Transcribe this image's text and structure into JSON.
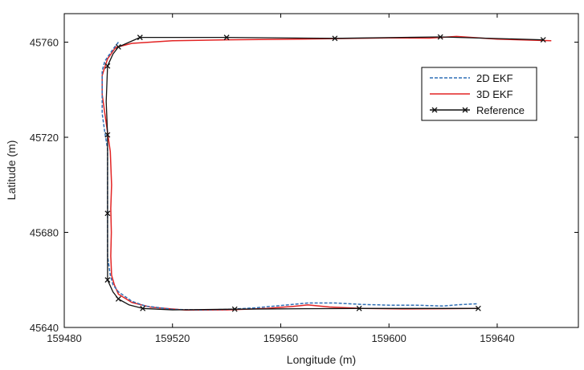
{
  "chart_data": {
    "type": "line",
    "title": "",
    "xlabel": "Longitude (m)",
    "ylabel": "Latitude (m)",
    "xlim": [
      159480,
      159670
    ],
    "ylim": [
      45640,
      45772
    ],
    "xticks": [
      159480,
      159520,
      159560,
      159600,
      159640
    ],
    "yticks": [
      45640,
      45680,
      45720,
      45760
    ],
    "legend_position": "upper-right",
    "grid": false,
    "series": [
      {
        "name": "2D EKF",
        "color": "#2f6fb5",
        "style": "dashed",
        "points": [
          [
            159500,
            45760
          ],
          [
            159498,
            45757
          ],
          [
            159495,
            45752
          ],
          [
            159494,
            45748
          ],
          [
            159494,
            45740
          ],
          [
            159494,
            45730
          ],
          [
            159495,
            45722
          ],
          [
            159496,
            45715
          ],
          [
            159496,
            45700
          ],
          [
            159496,
            45690
          ],
          [
            159496,
            45680
          ],
          [
            159496,
            45670
          ],
          [
            159497,
            45662
          ],
          [
            159498,
            45658
          ],
          [
            159500,
            45655
          ],
          [
            159505,
            45651
          ],
          [
            159510,
            45649
          ],
          [
            159520,
            45647.6
          ],
          [
            159530,
            45647.4
          ],
          [
            159540,
            45647.6
          ],
          [
            159550,
            45648.2
          ],
          [
            159560,
            45649.2
          ],
          [
            159570,
            45650.3
          ],
          [
            159580,
            45650.3
          ],
          [
            159590,
            45649.7
          ],
          [
            159600,
            45649.4
          ],
          [
            159610,
            45649.4
          ],
          [
            159620,
            45649.0
          ],
          [
            159626,
            45649.6
          ],
          [
            159633,
            45650.0
          ]
        ]
      },
      {
        "name": "3D EKF",
        "color": "#e32424",
        "style": "solid",
        "points": [
          [
            159660,
            45760.6
          ],
          [
            159640,
            45761.3
          ],
          [
            159625,
            45762.4
          ],
          [
            159615,
            45761.7
          ],
          [
            159600,
            45761.8
          ],
          [
            159580,
            45761.5
          ],
          [
            159560,
            45761.2
          ],
          [
            159540,
            45761.0
          ],
          [
            159520,
            45760.6
          ],
          [
            159505,
            45759.5
          ],
          [
            159499,
            45757.8
          ],
          [
            159496,
            45753.0
          ],
          [
            159494,
            45746.0
          ],
          [
            159494,
            45738.0
          ],
          [
            159495,
            45730.0
          ],
          [
            159496,
            45722.0
          ],
          [
            159497,
            45714.0
          ],
          [
            159497.5,
            45700.0
          ],
          [
            159497.2,
            45690.0
          ],
          [
            159497.4,
            45680.0
          ],
          [
            159497.2,
            45670.0
          ],
          [
            159497.5,
            45662.0
          ],
          [
            159498.5,
            45658.0
          ],
          [
            159500,
            45654.0
          ],
          [
            159505,
            45650.5
          ],
          [
            159512,
            45648.5
          ],
          [
            159525,
            45647.3
          ],
          [
            159540,
            45647.4
          ],
          [
            159555,
            45648.0
          ],
          [
            159565,
            45648.9
          ],
          [
            159570,
            45649.5
          ],
          [
            159578,
            45648.6
          ],
          [
            159590,
            45648.0
          ],
          [
            159605,
            45647.8
          ],
          [
            159620,
            45647.9
          ],
          [
            159633,
            45648.0
          ]
        ]
      },
      {
        "name": "Reference",
        "color": "#111111",
        "style": "solid",
        "marker": "x",
        "points": [
          [
            159657,
            45761.0
          ],
          [
            159619,
            45762.2
          ],
          [
            159580,
            45761.6
          ],
          [
            159540,
            45762.0
          ],
          [
            159508,
            45762.0
          ],
          [
            159500,
            45758.0
          ],
          [
            159498,
            45755.0
          ],
          [
            159496,
            45750.0
          ],
          [
            159495.5,
            45735.0
          ],
          [
            159496,
            45721.0
          ],
          [
            159496,
            45705.0
          ],
          [
            159496,
            45688.0
          ],
          [
            159496,
            45670.0
          ],
          [
            159496,
            45660.0
          ],
          [
            159498,
            45655.0
          ],
          [
            159500,
            45652.0
          ],
          [
            159504,
            45649.5
          ],
          [
            159509,
            45648.0
          ],
          [
            159520,
            45647.4
          ],
          [
            159543,
            45647.7
          ],
          [
            159570,
            45647.9
          ],
          [
            159589,
            45648.0
          ],
          [
            159610,
            45648.0
          ],
          [
            159633,
            45648.0
          ]
        ],
        "marker_points": [
          [
            159657,
            45761.0
          ],
          [
            159619,
            45762.2
          ],
          [
            159580,
            45761.6
          ],
          [
            159540,
            45762.0
          ],
          [
            159508,
            45762.0
          ],
          [
            159500,
            45758.0
          ],
          [
            159496,
            45750.0
          ],
          [
            159496,
            45721.0
          ],
          [
            159496,
            45688.0
          ],
          [
            159496,
            45660.0
          ],
          [
            159500,
            45652.0
          ],
          [
            159509,
            45648.0
          ],
          [
            159543,
            45647.7
          ],
          [
            159589,
            45648.0
          ],
          [
            159633,
            45648.0
          ]
        ]
      }
    ]
  }
}
